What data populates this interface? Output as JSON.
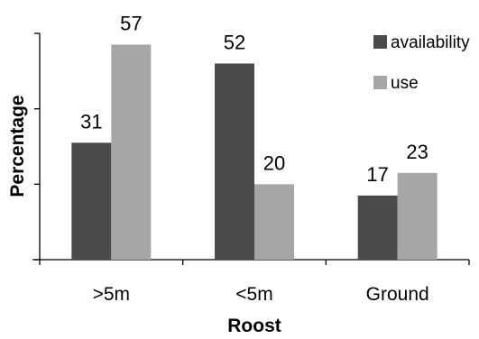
{
  "chart_data": {
    "type": "bar",
    "title": "",
    "xlabel": "Roost",
    "ylabel": "Percentage",
    "categories": [
      ">5m",
      "<5m",
      "Ground"
    ],
    "series": [
      {
        "name": "availability",
        "values": [
          31,
          52,
          17
        ],
        "color": "#4a4a4a"
      },
      {
        "name": "use",
        "values": [
          57,
          20,
          23
        ],
        "color": "#a6a6a6"
      }
    ],
    "ylim": [
      0,
      60
    ],
    "grid": false,
    "legend_position": "top-right",
    "data_labels": true,
    "y_tick_labels": false
  }
}
